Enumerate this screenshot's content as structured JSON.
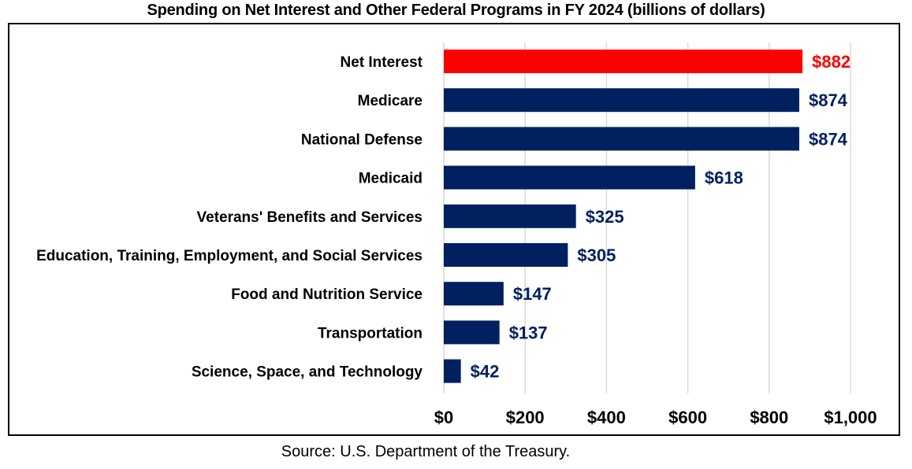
{
  "chart_data": {
    "type": "bar",
    "orientation": "horizontal",
    "title": "Spending on Net Interest and Other Federal Programs in FY 2024 (billions of dollars)",
    "categories": [
      "Net Interest",
      "Medicare",
      "National Defense",
      "Medicaid",
      "Veterans' Benefits and Services",
      "Education, Training, Employment, and Social Services",
      "Food and Nutrition Service",
      "Transportation",
      "Science, Space, and Technology"
    ],
    "values": [
      882,
      874,
      874,
      618,
      325,
      305,
      147,
      137,
      42
    ],
    "data_labels": [
      "$882",
      "$874",
      "$874",
      "$618",
      "$325",
      "$305",
      "$147",
      "$137",
      "$42"
    ],
    "highlight_index": 0,
    "colors": {
      "highlight": "#FF0000",
      "default": "#002060",
      "grid": "#D9D9D9"
    },
    "xlim": [
      0,
      1000
    ],
    "xticks": [
      0,
      200,
      400,
      600,
      800,
      1000
    ],
    "xtick_labels": [
      "$0",
      "$200",
      "$400",
      "$600",
      "$800",
      "$1,000"
    ],
    "xlabel": "",
    "ylabel": "",
    "grid": "vertical",
    "legend": "none"
  },
  "source": "Source: U.S. Department of the Treasury."
}
